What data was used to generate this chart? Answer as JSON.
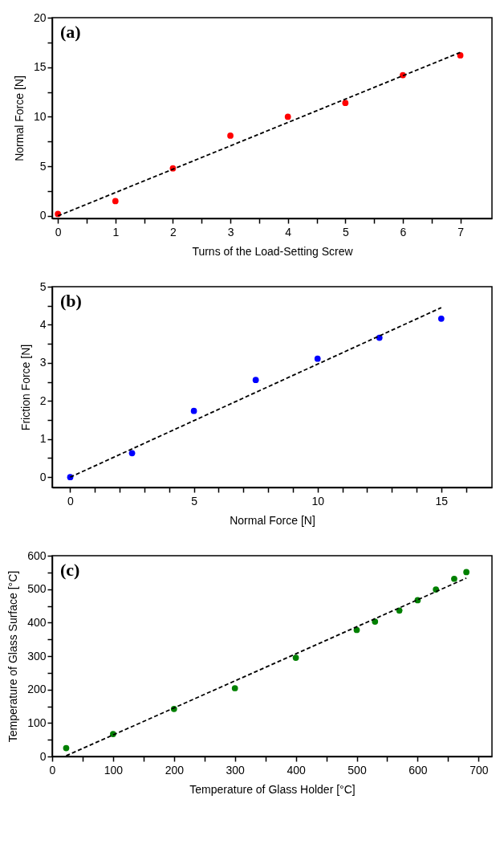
{
  "chart_data": [
    {
      "type": "scatter",
      "xlabel": "Turns of the Load-Setting Screw",
      "ylabel": "Normal Force [N]",
      "annotations": [
        "(a)"
      ],
      "grid": false,
      "xlim": [
        -0.1,
        7.55
      ],
      "ylim": [
        -0.25,
        20
      ],
      "xticks": [
        0,
        {
          "value": 0.5,
          "label": null
        },
        1,
        {
          "value": 1.5,
          "label": null
        },
        2,
        {
          "value": 2.5,
          "label": null
        },
        3,
        {
          "value": 3.5,
          "label": null
        },
        4,
        {
          "value": 4.5,
          "label": null
        },
        5,
        {
          "value": 5.5,
          "label": null
        },
        6,
        {
          "value": 6.5,
          "label": null
        },
        7
      ],
      "yticks": [
        0,
        {
          "value": 2.5,
          "label": null
        },
        5,
        {
          "value": 7.5,
          "label": null
        },
        10,
        {
          "value": 12.5,
          "label": null
        },
        15,
        {
          "value": 17.5,
          "label": null
        },
        20
      ],
      "series": [
        {
          "color": "#ff0000",
          "marker": "circle",
          "x": [
            0,
            1,
            2,
            3,
            4,
            5,
            6,
            7
          ],
          "values": [
            0.2,
            1.5,
            4.8,
            8.1,
            10,
            11.4,
            14.2,
            16.2
          ]
        },
        {
          "type": "line",
          "color": "#000000",
          "line_style": "dashed",
          "x": [
            0,
            7
          ],
          "values": [
            0,
            16.5
          ]
        }
      ]
    },
    {
      "type": "scatter",
      "xlabel": "Normal Force [N]",
      "ylabel": "Friction Force [N]",
      "annotations": [
        "(b)"
      ],
      "grid": false,
      "xlim": [
        -0.73,
        17.05
      ],
      "ylim": [
        -0.27,
        5
      ],
      "xticks": [
        0,
        {
          "value": 1,
          "label": null
        },
        {
          "value": 2,
          "label": null
        },
        {
          "value": 3,
          "label": null
        },
        {
          "value": 4,
          "label": null
        },
        5,
        {
          "value": 6,
          "label": null
        },
        {
          "value": 7,
          "label": null
        },
        {
          "value": 8,
          "label": null
        },
        {
          "value": 9,
          "label": null
        },
        10,
        {
          "value": 11,
          "label": null
        },
        {
          "value": 12,
          "label": null
        },
        {
          "value": 13,
          "label": null
        },
        {
          "value": 14,
          "label": null
        },
        15,
        {
          "value": 16,
          "label": null
        }
      ],
      "yticks": [
        0,
        {
          "value": 0.5,
          "label": null
        },
        1,
        {
          "value": 1.5,
          "label": null
        },
        2,
        {
          "value": 2.5,
          "label": null
        },
        3,
        {
          "value": 3.5,
          "label": null
        },
        4,
        {
          "value": 4.5,
          "label": null
        },
        5
      ],
      "series": [
        {
          "color": "#0000ff",
          "marker": "circle",
          "x": [
            0,
            2.5,
            5,
            7.5,
            10,
            12.5,
            15
          ],
          "values": [
            0,
            0.63,
            1.74,
            2.55,
            3.11,
            3.66,
            4.16
          ]
        },
        {
          "type": "line",
          "color": "#000000",
          "line_style": "dashed",
          "x": [
            0,
            15
          ],
          "values": [
            0,
            4.45
          ]
        }
      ]
    },
    {
      "type": "scatter",
      "xlabel": "Temperature of Glass Holder [°C]",
      "ylabel": "Temperature of Glass Surface [°C]",
      "annotations": [
        "(c)"
      ],
      "grid": false,
      "xlim": [
        0,
        722
      ],
      "ylim": [
        0,
        600
      ],
      "xticks": [
        0,
        {
          "value": 50,
          "label": null
        },
        100,
        {
          "value": 150,
          "label": null
        },
        200,
        {
          "value": 250,
          "label": null
        },
        300,
        {
          "value": 350,
          "label": null
        },
        400,
        {
          "value": 450,
          "label": null
        },
        500,
        {
          "value": 550,
          "label": null
        },
        600,
        {
          "value": 650,
          "label": null
        },
        700
      ],
      "yticks": [
        0,
        {
          "value": 50,
          "label": null
        },
        100,
        {
          "value": 150,
          "label": null
        },
        200,
        {
          "value": 250,
          "label": null
        },
        300,
        {
          "value": 350,
          "label": null
        },
        400,
        {
          "value": 450,
          "label": null
        },
        500,
        {
          "value": 550,
          "label": null
        },
        600
      ],
      "series": [
        {
          "color": "#008000",
          "marker": "circle",
          "x": [
            23,
            100,
            200,
            300,
            400,
            500,
            530,
            570,
            600,
            630,
            660,
            680
          ],
          "values": [
            25,
            67,
            142,
            204,
            295,
            378,
            403,
            436,
            467,
            499,
            531,
            551
          ]
        },
        {
          "type": "line",
          "color": "#000000",
          "line_style": "dashed",
          "x": [
            23,
            680
          ],
          "values": [
            2,
            533
          ]
        }
      ]
    }
  ]
}
